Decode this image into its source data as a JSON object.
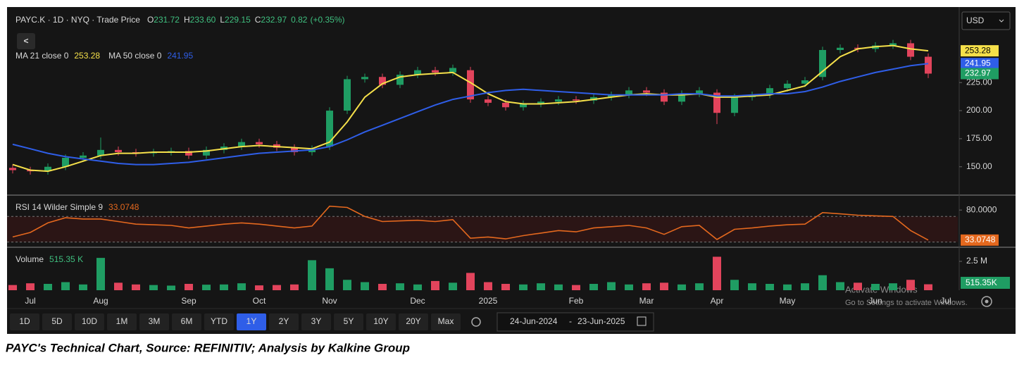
{
  "chart_data": [
    {
      "type": "candlestick",
      "title": "PAYC.K · 1D · NYQ · Trade Price",
      "ohlc": [
        {
          "label": "O",
          "value": "231.72"
        },
        {
          "label": "H",
          "value": "233.60"
        },
        {
          "label": "L",
          "value": "229.15"
        },
        {
          "label": "C",
          "value": "232.97"
        }
      ],
      "change": "0.82",
      "change_pct": "(+0.35%)",
      "categories": [
        null,
        "Jul",
        null,
        null,
        null,
        "Aug",
        null,
        null,
        null,
        null,
        "Sep",
        null,
        null,
        null,
        "Oct",
        null,
        null,
        null,
        "Nov",
        null,
        null,
        null,
        null,
        "Dec",
        null,
        null,
        null,
        "2025",
        null,
        null,
        null,
        null,
        "Feb",
        null,
        null,
        null,
        "Mar",
        null,
        null,
        null,
        "Apr",
        null,
        null,
        null,
        "May",
        null,
        null,
        null,
        null,
        "Jun",
        null,
        null,
        null,
        "Jul"
      ],
      "open": [
        149,
        147,
        146,
        150,
        158,
        160,
        165,
        163,
        162,
        163,
        164,
        160,
        165,
        168,
        172,
        170,
        167,
        163,
        168,
        200,
        228,
        230,
        223,
        232,
        236,
        234,
        236,
        210,
        207,
        203,
        206,
        208,
        210,
        209,
        212,
        214,
        218,
        216,
        208,
        215,
        216,
        198,
        212,
        214,
        220,
        224,
        230,
        254,
        256,
        255,
        258,
        260,
        248,
        null
      ],
      "high": [
        152,
        150,
        153,
        161,
        163,
        176,
        168,
        166,
        166,
        167,
        167,
        168,
        171,
        175,
        175,
        173,
        170,
        169,
        203,
        231,
        233,
        233,
        235,
        239,
        239,
        241,
        239,
        213,
        210,
        209,
        211,
        213,
        213,
        215,
        217,
        221,
        221,
        219,
        218,
        221,
        219,
        215,
        217,
        223,
        227,
        230,
        257,
        259,
        259,
        261,
        263,
        263,
        251,
        null
      ],
      "low": [
        144,
        143,
        143,
        147,
        155,
        157,
        160,
        159,
        159,
        160,
        157,
        157,
        162,
        165,
        167,
        164,
        160,
        160,
        165,
        197,
        225,
        220,
        220,
        229,
        231,
        231,
        207,
        204,
        200,
        200,
        203,
        205,
        206,
        206,
        209,
        211,
        213,
        205,
        205,
        212,
        188,
        195,
        209,
        211,
        217,
        221,
        227,
        251,
        252,
        252,
        255,
        245,
        229,
        null
      ],
      "close": [
        147,
        146,
        150,
        158,
        160,
        165,
        163,
        162,
        163,
        164,
        160,
        165,
        168,
        172,
        170,
        167,
        163,
        166,
        200,
        228,
        230,
        223,
        232,
        236,
        234,
        238,
        210,
        207,
        203,
        206,
        208,
        210,
        209,
        212,
        214,
        218,
        216,
        208,
        215,
        218,
        198,
        212,
        214,
        220,
        224,
        227,
        254,
        256,
        255,
        258,
        260,
        248,
        232.97,
        null
      ],
      "up_color": "#1f9d63",
      "down_color": "#e2445c",
      "series": [
        {
          "name": "MA 21 close 0",
          "color": "#f5e04a",
          "values": [
            152,
            147,
            146,
            150,
            155,
            160,
            162,
            162,
            163,
            163,
            163,
            164,
            166,
            168,
            169,
            168,
            167,
            166,
            172,
            190,
            212,
            224,
            230,
            232,
            233,
            234,
            225,
            215,
            208,
            206,
            206,
            207,
            208,
            210,
            212,
            214,
            215,
            214,
            214,
            215,
            212,
            212,
            213,
            214,
            218,
            222,
            235,
            248,
            255,
            257,
            258,
            255,
            253.28,
            null
          ]
        },
        {
          "name": "MA 50 close 0",
          "color": "#2f5ee8",
          "values": [
            170,
            166,
            162,
            159,
            157,
            155,
            153,
            152,
            152,
            153,
            154,
            156,
            158,
            160,
            162,
            163,
            164,
            165,
            168,
            174,
            181,
            187,
            193,
            199,
            205,
            210,
            213,
            216,
            218,
            219,
            218,
            217,
            216,
            215,
            214,
            214,
            214,
            214,
            215,
            215,
            213,
            213,
            214,
            215,
            215,
            217,
            221,
            226,
            230,
            234,
            237,
            240,
            241.95,
            null
          ]
        }
      ],
      "ylim": [
        126,
        291
      ],
      "yticks": [
        {
          "value": 150,
          "label": "150.00"
        },
        {
          "value": 175,
          "label": "175.00"
        },
        {
          "value": 200,
          "label": "200.00"
        },
        {
          "value": 225,
          "label": "225.00"
        }
      ]
    },
    {
      "type": "line",
      "title": "RSI 14 Wilder Simple 9",
      "series": [
        {
          "name": "RSI",
          "color": "#e4681e",
          "values": [
            38,
            45,
            60,
            68,
            66,
            66,
            62,
            58,
            57,
            56,
            52,
            55,
            58,
            60,
            58,
            55,
            52,
            55,
            86,
            84,
            70,
            62,
            63,
            64,
            62,
            65,
            36,
            38,
            35,
            40,
            44,
            48,
            46,
            52,
            54,
            56,
            52,
            42,
            54,
            56,
            34,
            50,
            52,
            55,
            57,
            58,
            76,
            74,
            72,
            71,
            70,
            48,
            33.0748,
            null
          ]
        }
      ],
      "bands": [
        30,
        70
      ],
      "ylim": [
        23,
        100
      ],
      "yticks": [
        {
          "value": 80,
          "label": "80.0000"
        }
      ]
    },
    {
      "type": "bar",
      "title": "Volume",
      "legend_value": "515.35 K",
      "axis_value": "515.35K",
      "values": [
        450000,
        600000,
        550000,
        700000,
        500000,
        2800000,
        650000,
        500000,
        450000,
        400000,
        550000,
        480000,
        500000,
        600000,
        420000,
        450000,
        500000,
        2600000,
        1900000,
        900000,
        700000,
        550000,
        600000,
        500000,
        800000,
        650000,
        1500000,
        700000,
        550000,
        500000,
        600000,
        500000,
        450000,
        550000,
        700000,
        500000,
        600000,
        650000,
        500000,
        600000,
        2900000,
        900000,
        600000,
        550000,
        500000,
        600000,
        1300000,
        700000,
        650000,
        550000,
        600000,
        900000,
        515350,
        null
      ],
      "ylim": [
        0,
        3600000
      ],
      "yticks": [
        {
          "value": 2500000,
          "label": "2.5 M"
        }
      ]
    }
  ],
  "ui": {
    "currency": "USD",
    "back": "<",
    "ranges": [
      "1D",
      "5D",
      "10D",
      "1M",
      "3M",
      "6M",
      "YTD",
      "1Y",
      "2Y",
      "3Y",
      "5Y",
      "10Y",
      "20Y",
      "Max"
    ],
    "active_range": "1Y",
    "date_from": "24-Jun-2024",
    "date_sep": "-",
    "date_to": "23-Jun-2025",
    "watermark_title": "Activate Windows",
    "watermark_text": "Go to Settings to activate Windows.",
    "caption": "PAYC's Technical Chart, Source: REFINITIV; Analysis by Kalkine Group"
  }
}
